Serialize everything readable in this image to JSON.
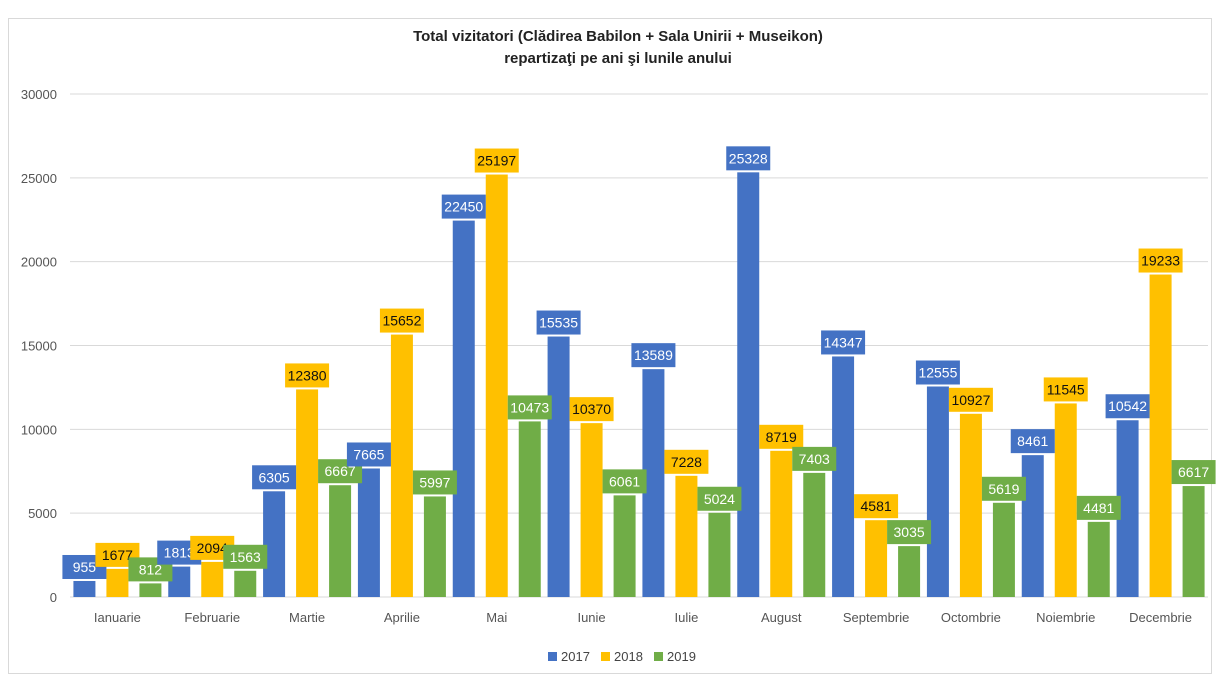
{
  "chart_data": {
    "type": "bar",
    "title": "Total vizitatori (Clădirea Babilon + Sala Unirii + Museikon)",
    "subtitle": "repartizaţi pe ani şi lunile anului",
    "categories": [
      "Ianuarie",
      "Februarie",
      "Martie",
      "Aprilie",
      "Mai",
      "Iunie",
      "Iulie",
      "August",
      "Septembrie",
      "Octombrie",
      "Noiembrie",
      "Decembrie"
    ],
    "series": [
      {
        "name": "2017",
        "color": "#4472c4",
        "values": [
          955,
          1813,
          6305,
          7665,
          22450,
          15535,
          13589,
          25328,
          14347,
          12555,
          8461,
          10542
        ]
      },
      {
        "name": "2018",
        "color": "#ffc000",
        "values": [
          1677,
          2094,
          12380,
          15652,
          25197,
          10370,
          7228,
          8719,
          4581,
          10927,
          11545,
          19233
        ]
      },
      {
        "name": "2019",
        "color": "#70ad47",
        "values": [
          812,
          1563,
          6667,
          5997,
          10473,
          6061,
          5024,
          7403,
          3035,
          5619,
          4481,
          6617
        ]
      }
    ],
    "ylim": [
      0,
      30000
    ],
    "yticks": [
      0,
      5000,
      10000,
      15000,
      20000,
      25000,
      30000
    ],
    "grid": true,
    "legend": "bottom",
    "data_labels": true
  }
}
